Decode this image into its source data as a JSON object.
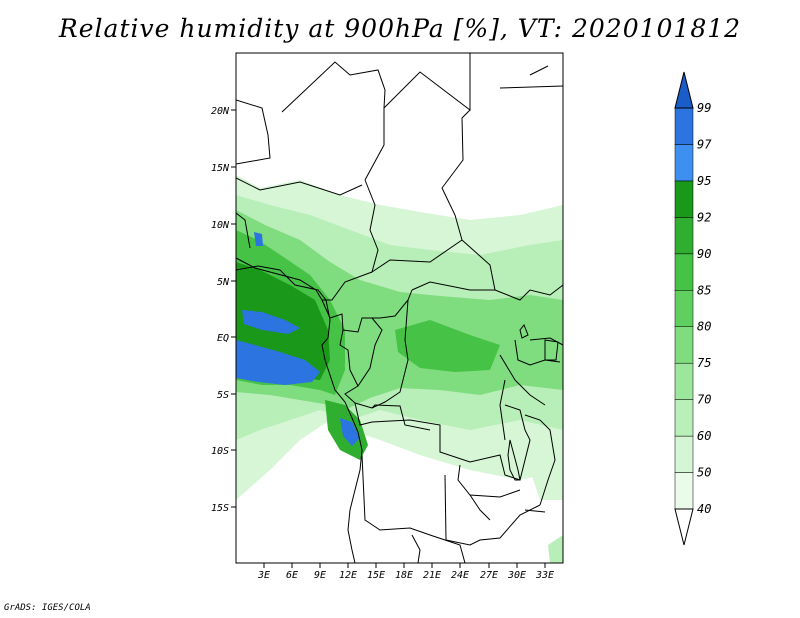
{
  "title": "Relative humidity at 900hPa [%], VT: 2020101812",
  "credit": "GrADS: IGES/COLA",
  "map": {
    "lat_labels": [
      "20N",
      "15N",
      "10N",
      "5N",
      "EQ",
      "5S",
      "10S",
      "15S"
    ],
    "lon_labels": [
      "3E",
      "6E",
      "9E",
      "12E",
      "15E",
      "18E",
      "21E",
      "24E",
      "27E",
      "30E",
      "33E"
    ]
  },
  "colorbar": {
    "labels": [
      "40",
      "50",
      "60",
      "70",
      "75",
      "80",
      "85",
      "90",
      "92",
      "95",
      "97",
      "99"
    ],
    "colors": [
      "#eafbea",
      "#d4f6d4",
      "#b9efb9",
      "#9de79d",
      "#7fdc7f",
      "#5fd05f",
      "#46c246",
      "#2fae2f",
      "#1a981a",
      "#3d8ff0",
      "#2c74e0",
      "#1a5dc8"
    ]
  }
}
